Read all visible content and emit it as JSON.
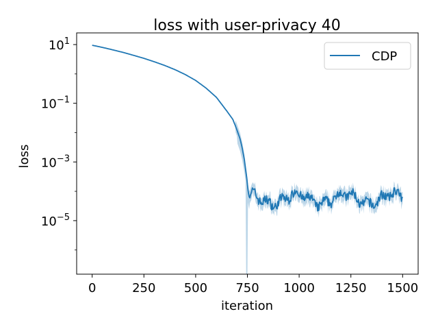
{
  "chart_data": {
    "type": "line",
    "title": "loss with user-privacy  40",
    "xlabel": "iteration",
    "ylabel": "loss",
    "yscale": "log",
    "xlim": [
      -75,
      1575
    ],
    "ylim": [
      1.5e-07,
      25
    ],
    "grid": false,
    "legend_position": "top-right",
    "x_ticks": [
      0,
      250,
      500,
      750,
      1000,
      1250,
      1500
    ],
    "x_tick_labels": [
      "0",
      "250",
      "500",
      "750",
      "1000",
      "1250",
      "1500"
    ],
    "y_ticks": [
      10,
      0.1,
      0.001,
      1e-05
    ],
    "y_tick_labels": [
      {
        "base": "10",
        "exp": "1"
      },
      {
        "base": "10",
        "exp": "−1"
      },
      {
        "base": "10",
        "exp": "−3"
      },
      {
        "base": "10",
        "exp": "−5"
      }
    ],
    "series": [
      {
        "name": "CDP",
        "color": "#1f77b4",
        "band_color": "#a6c8e0",
        "curve": [
          [
            0,
            9.5
          ],
          [
            50,
            8.0
          ],
          [
            100,
            6.6
          ],
          [
            150,
            5.4
          ],
          [
            200,
            4.3
          ],
          [
            250,
            3.4
          ],
          [
            300,
            2.6
          ],
          [
            350,
            1.95
          ],
          [
            400,
            1.4
          ],
          [
            450,
            0.95
          ],
          [
            500,
            0.6
          ],
          [
            550,
            0.33
          ],
          [
            600,
            0.16
          ],
          [
            650,
            0.055
          ],
          [
            680,
            0.028
          ],
          [
            700,
            0.012
          ],
          [
            715,
            0.006
          ],
          [
            725,
            0.003
          ],
          [
            735,
            0.0012
          ],
          [
            742,
            0.0005
          ],
          [
            748,
            0.00025
          ],
          [
            752,
            0.00012
          ],
          [
            756,
            8e-05
          ],
          [
            760,
            6e-05
          ]
        ],
        "noise_start": 760,
        "noise_end": 1500,
        "noise_level": 5.5e-05,
        "band_dip_x": 748,
        "band_dip_low": 1.5e-07
      }
    ]
  }
}
